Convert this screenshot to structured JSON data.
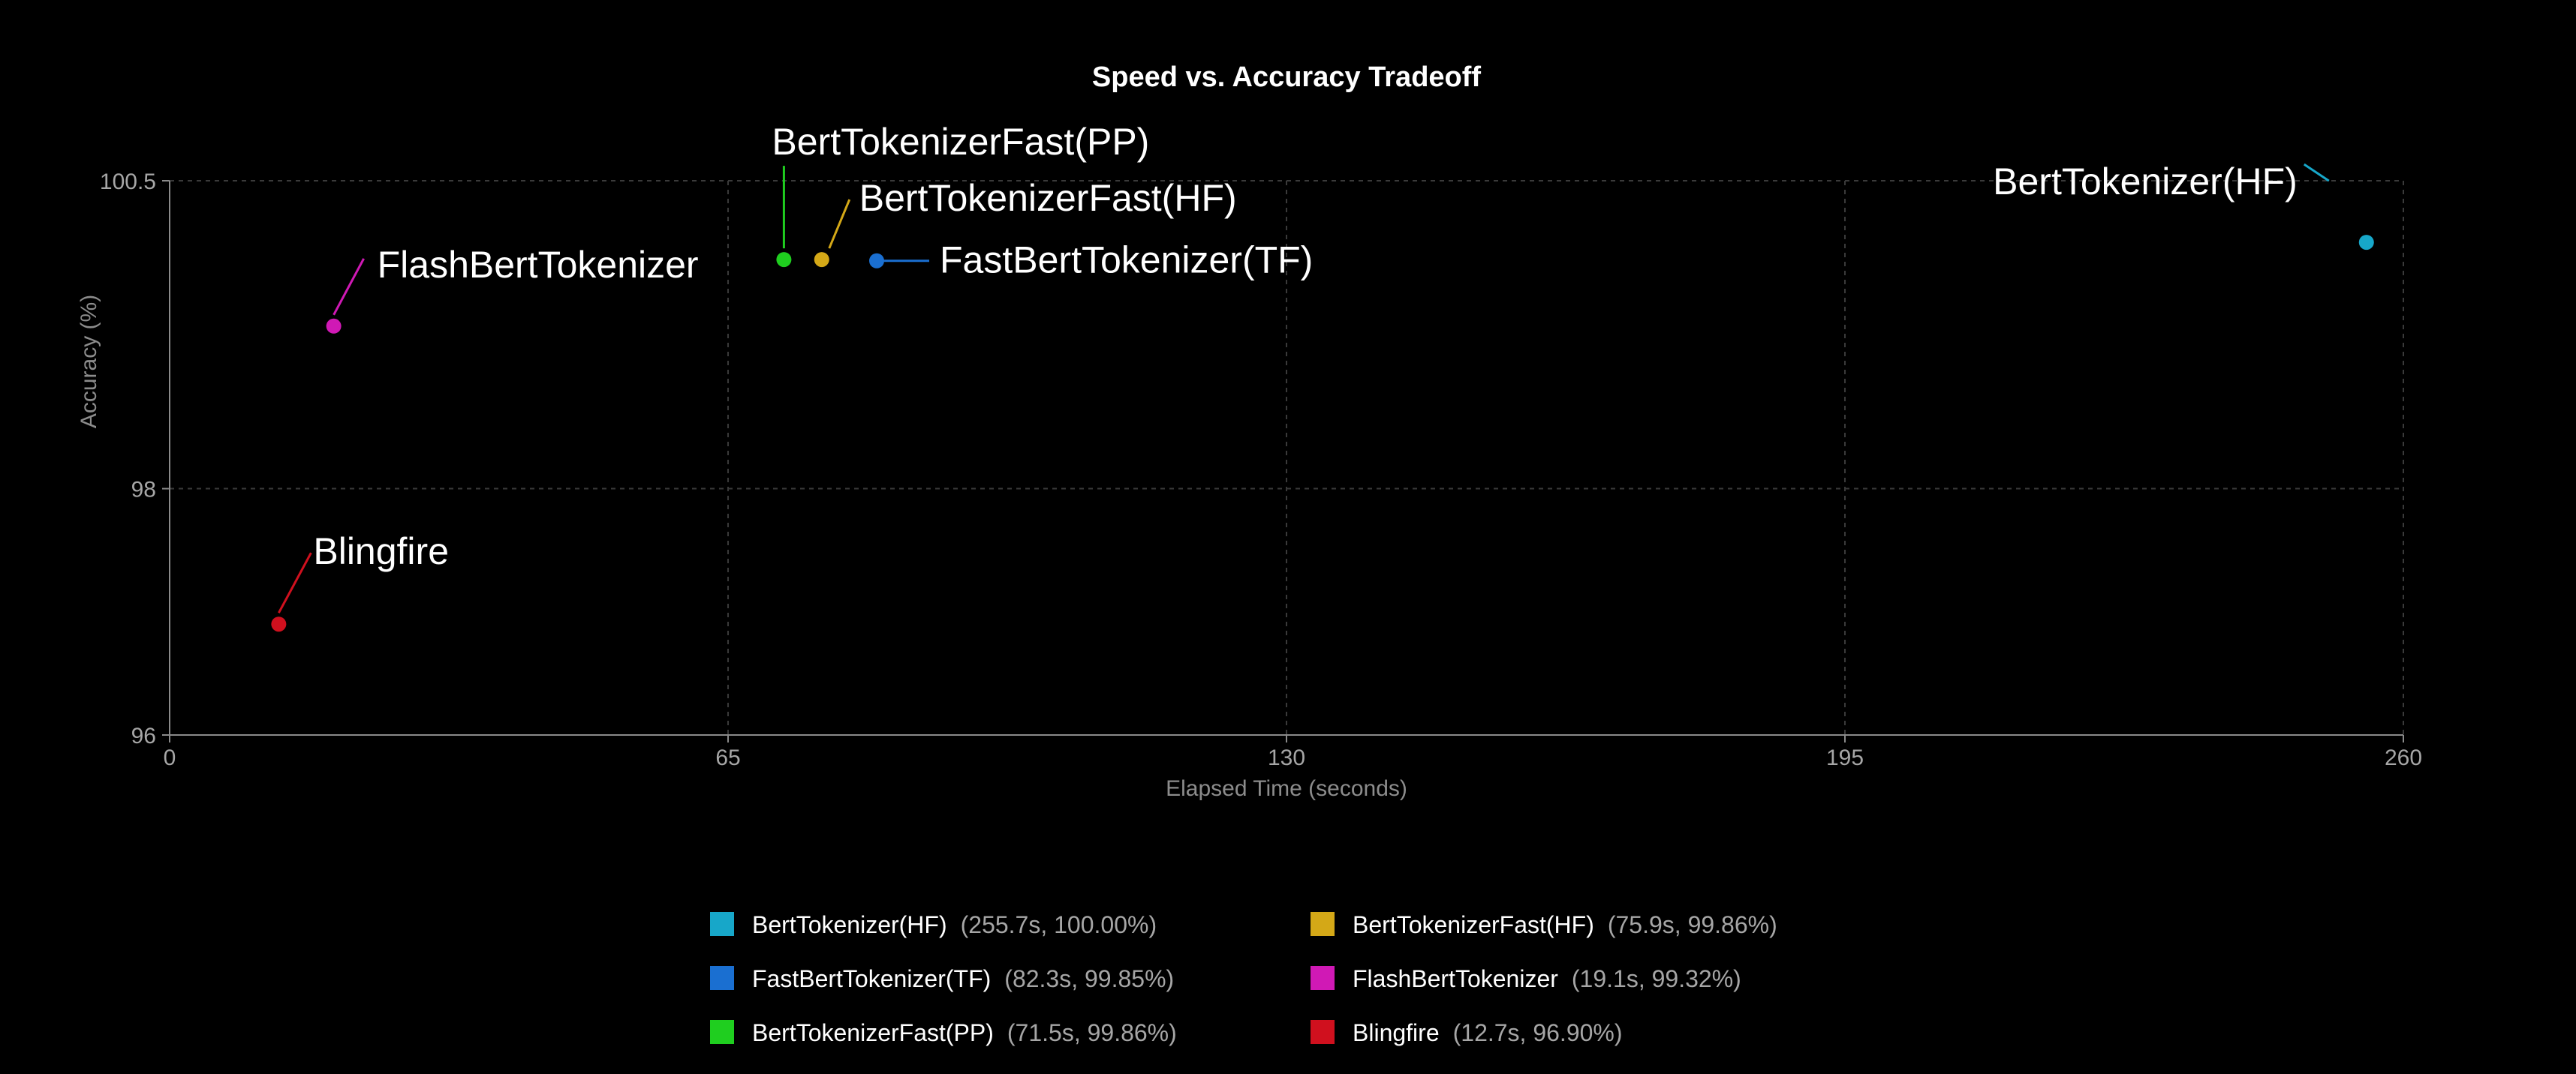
{
  "chart_data": {
    "type": "scatter",
    "title": "Speed vs. Accuracy Tradeoff",
    "xlabel": "Elapsed Time (seconds)",
    "ylabel": "Accuracy (%)",
    "xlim": [
      0,
      260
    ],
    "ylim": [
      96,
      100.5
    ],
    "xticks": [
      "0",
      "65",
      "130",
      "195",
      "260"
    ],
    "yticks": [
      "96",
      "98",
      "100.5"
    ],
    "grid": true,
    "legend_position": "bottom",
    "points": [
      {
        "name": "BertTokenizer(HF)",
        "x": 255.7,
        "y": 100.0,
        "color": "#17a7c9",
        "legend_detail": "(255.7s, 100.00%)"
      },
      {
        "name": "BertTokenizerFast(HF)",
        "x": 75.9,
        "y": 99.86,
        "color": "#d4a817",
        "legend_detail": "(75.9s, 99.86%)"
      },
      {
        "name": "FastBertTokenizer(TF)",
        "x": 82.3,
        "y": 99.85,
        "color": "#1a6fd1",
        "legend_detail": "(82.3s, 99.85%)"
      },
      {
        "name": "FlashBertTokenizer",
        "x": 19.1,
        "y": 99.32,
        "color": "#d019b5",
        "legend_detail": "(19.1s, 99.32%)"
      },
      {
        "name": "BertTokenizerFast(PP)",
        "x": 71.5,
        "y": 99.86,
        "color": "#1fce1f",
        "legend_detail": "(71.5s, 99.86%)"
      },
      {
        "name": "Blingfire",
        "x": 12.7,
        "y": 96.9,
        "color": "#d0101e",
        "legend_detail": "(12.7s, 96.90%)"
      }
    ]
  }
}
